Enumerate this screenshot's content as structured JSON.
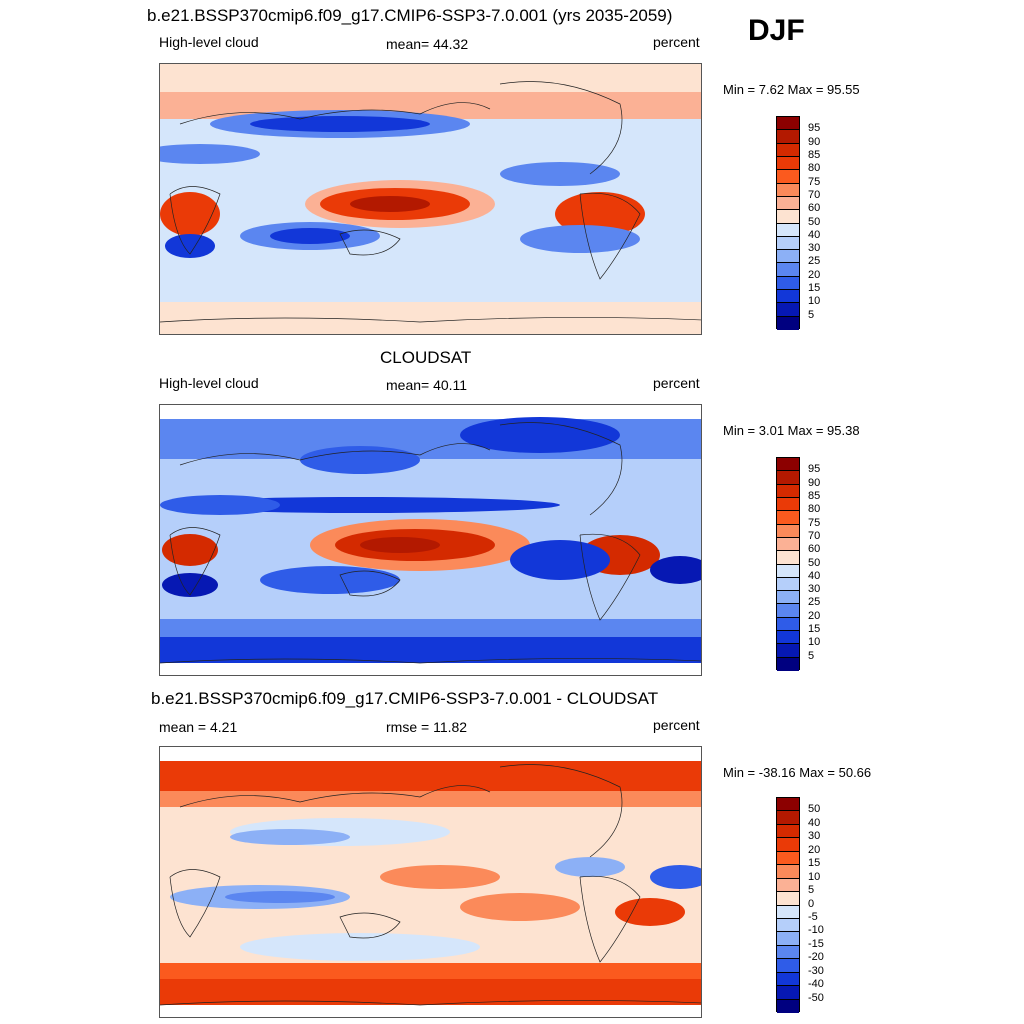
{
  "season": "DJF",
  "panels": [
    {
      "title": "b.e21.BSSP370cmip6.f09_g17.CMIP6-SSP3-7.0.001 (yrs 2035-2059)",
      "left_label": "High-level cloud",
      "center_label": "mean=  44.32",
      "right_label": "percent",
      "minmax": "Min =   7.62 Max =  95.55",
      "colorbar_labels": [
        "95",
        "90",
        "85",
        "80",
        "75",
        "70",
        "60",
        "50",
        "40",
        "30",
        "25",
        "20",
        "15",
        "10",
        "5"
      ],
      "colorbar_colors": [
        "#8c0000",
        "#b31900",
        "#d42a00",
        "#ea3a07",
        "#fb5a1e",
        "#fb8a5a",
        "#fbb195",
        "#fde3d1",
        "#d5e6fb",
        "#b5cffa",
        "#8cb0f6",
        "#5b86f0",
        "#2f5ce8",
        "#1237d8",
        "#0618b3",
        "#000080"
      ]
    },
    {
      "title": "CLOUDSAT",
      "left_label": "High-level cloud",
      "center_label": "mean=  40.11",
      "right_label": "percent",
      "minmax": "Min =   3.01 Max =  95.38",
      "colorbar_labels": [
        "95",
        "90",
        "85",
        "80",
        "75",
        "70",
        "60",
        "50",
        "40",
        "30",
        "25",
        "20",
        "15",
        "10",
        "5"
      ],
      "colorbar_colors": [
        "#8c0000",
        "#b31900",
        "#d42a00",
        "#ea3a07",
        "#fb5a1e",
        "#fb8a5a",
        "#fbb195",
        "#fde3d1",
        "#d5e6fb",
        "#b5cffa",
        "#8cb0f6",
        "#5b86f0",
        "#2f5ce8",
        "#1237d8",
        "#0618b3",
        "#000080"
      ]
    },
    {
      "title": "b.e21.BSSP370cmip6.f09_g17.CMIP6-SSP3-7.0.001 - CLOUDSAT",
      "left_label": "mean =   4.21",
      "center_label": "rmse =  11.82",
      "right_label": "percent",
      "minmax": "Min = -38.16 Max =  50.66",
      "colorbar_labels": [
        "50",
        "40",
        "30",
        "20",
        "15",
        "10",
        "5",
        "0",
        "-5",
        "-10",
        "-15",
        "-20",
        "-30",
        "-40",
        "-50"
      ],
      "colorbar_colors": [
        "#8c0000",
        "#b31900",
        "#d42a00",
        "#ea3a07",
        "#fb5a1e",
        "#fb8a5a",
        "#fbb195",
        "#fde3d1",
        "#d5e6fb",
        "#b5cffa",
        "#8cb0f6",
        "#5b86f0",
        "#2f5ce8",
        "#1237d8",
        "#0618b3",
        "#000080"
      ]
    }
  ],
  "colors": {
    "light_blue": "#d5e6fb",
    "mid_blue": "#5b86f0",
    "dark_blue": "#1237d8",
    "navy": "#000080",
    "light_red": "#fde3d1",
    "mid_red": "#fb8a5a",
    "red": "#ea3a07",
    "dark_red": "#b31900"
  }
}
